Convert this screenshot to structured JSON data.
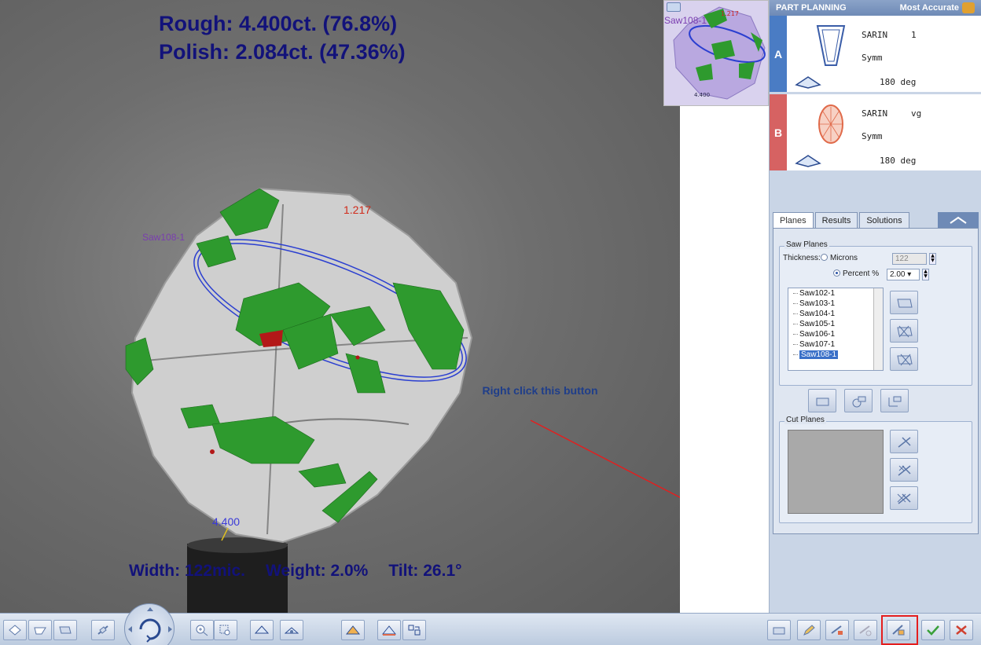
{
  "viewport": {
    "rough_label": "Rough: 4.400ct. (76.8%)",
    "polish_label": "Polish: 2.084ct. (47.36%)",
    "width_label": "Width: 122mic.",
    "weight_label": "Weight: 2.0%",
    "tilt_label": "Tilt: 26.1°",
    "saw_label": "Saw108-1",
    "dim_top": "1.217",
    "dim_bottom": "4.400",
    "callout_text": "Right click this button"
  },
  "thumbnail": {
    "saw_label": "Saw108-1",
    "dim_top": "1.217",
    "dim_bottom": "4.400"
  },
  "right_panel": {
    "header_left": "PART PLANNING",
    "header_right": "Most Accurate",
    "solutions": [
      {
        "tag": "A",
        "brand": "SARIN",
        "grade": "1",
        "symm": "Symm",
        "rotation": "180 deg",
        "color": "#4a7cc4"
      },
      {
        "tag": "B",
        "brand": "SARIN",
        "grade": "vg",
        "symm": "Symm",
        "rotation": "180 deg",
        "color": "#d66262"
      }
    ],
    "tabs": [
      {
        "label": "Planes",
        "active": true
      },
      {
        "label": "Results",
        "active": false
      },
      {
        "label": "Solutions",
        "active": false
      }
    ],
    "saw_planes": {
      "title": "Saw Planes",
      "thickness_label": "Thickness:",
      "microns_label": "Microns",
      "microns_value": "122",
      "percent_label": "Percent %",
      "percent_value": "2.00",
      "items": [
        "Saw102-1",
        "Saw103-1",
        "Saw104-1",
        "Saw105-1",
        "Saw106-1",
        "Saw107-1",
        "Saw108-1"
      ],
      "selected_item": "Saw108-1"
    },
    "cut_planes": {
      "title": "Cut Planes"
    }
  },
  "colors": {
    "text_dark_blue": "#12127a",
    "callout_blue": "#1f3e8a",
    "inclusion_green": "#2e9a2e",
    "highlight_red": "#e41e1e",
    "solution_a": "#4a7cc4",
    "solution_b": "#d66262"
  }
}
